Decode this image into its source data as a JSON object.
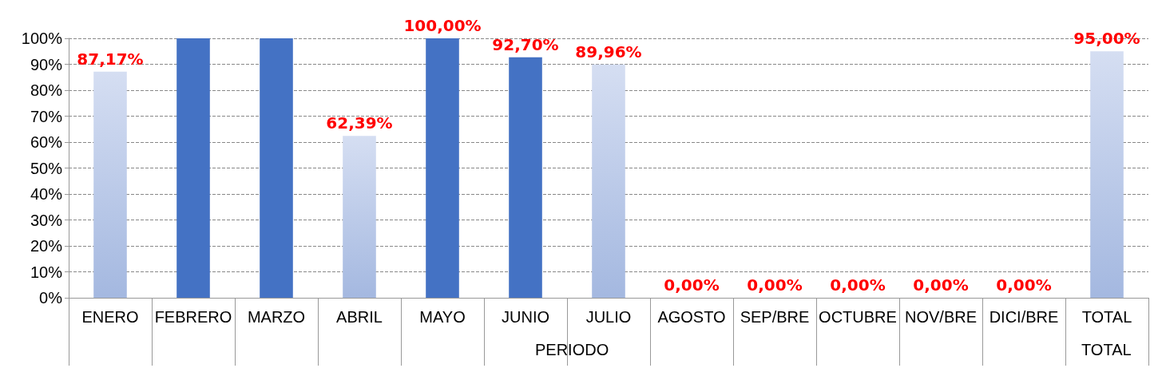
{
  "chart_data": {
    "type": "bar",
    "categories": [
      "ENERO",
      "FEBRERO",
      "MARZO",
      "ABRIL",
      "MAYO",
      "JUNIO",
      "JULIO",
      "AGOSTO",
      "SEP/BRE",
      "OCTUBRE",
      "NOV/BRE",
      "DICI/BRE",
      "TOTAL"
    ],
    "values": [
      87.17,
      100,
      100,
      62.39,
      100,
      92.7,
      89.96,
      0,
      0,
      0,
      0,
      0,
      95
    ],
    "colors": [
      "#a4b8e0",
      "#4472c4",
      "#4472c4",
      "#a4b8e0",
      "#4472c4",
      "#4472c4",
      "#a4b8e0",
      "#4472c4",
      "#4472c4",
      "#4472c4",
      "#4472c4",
      "#4472c4",
      "#a4b8e0"
    ],
    "value_labels": [
      "87,17%",
      null,
      null,
      "62,39%",
      "100,00%",
      "92,70%",
      "89,96%",
      "0,00%",
      "0,00%",
      "0,00%",
      "0,00%",
      "0,00%",
      "95,00%"
    ],
    "ylim": [
      0,
      100
    ],
    "yticks": [
      {
        "value": 0,
        "label": "0%"
      },
      {
        "value": 10,
        "label": "10%"
      },
      {
        "value": 20,
        "label": "20%"
      },
      {
        "value": 30,
        "label": "30%"
      },
      {
        "value": 40,
        "label": "40%"
      },
      {
        "value": 50,
        "label": "50%"
      },
      {
        "value": 60,
        "label": "60%"
      },
      {
        "value": 70,
        "label": "70%"
      },
      {
        "value": 80,
        "label": "80%"
      },
      {
        "value": 90,
        "label": "90%"
      },
      {
        "value": 100,
        "label": "100%"
      }
    ],
    "grid": "y",
    "annotations": [
      "PERIODO",
      "TOTAL"
    ]
  }
}
